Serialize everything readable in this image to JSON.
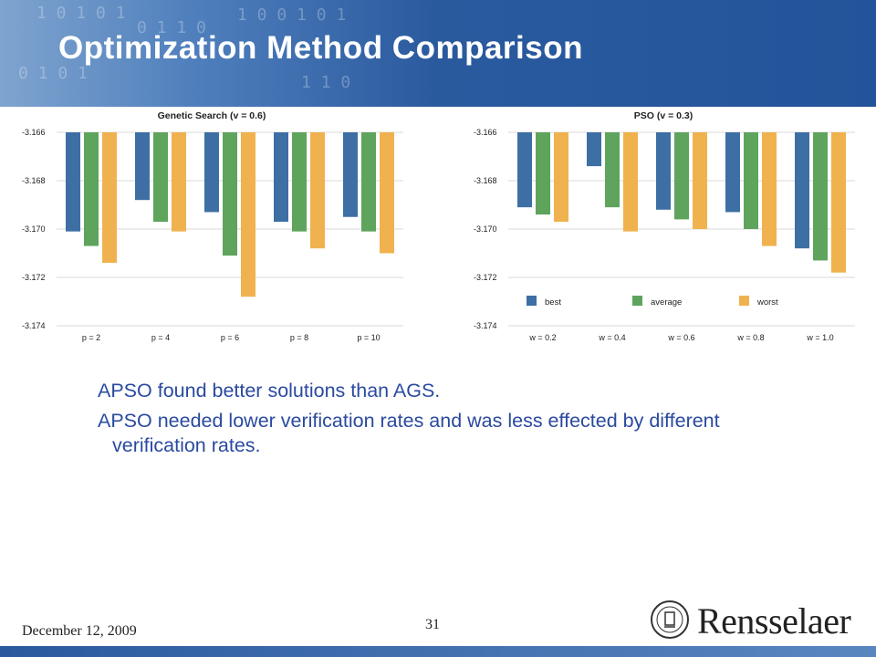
{
  "slide": {
    "title": "Optimization Method Comparison",
    "bullets": [
      "APSO found better solutions than AGS.",
      "APSO needed lower verification rates and was less effected by different verification rates."
    ],
    "footer": {
      "date": "December 12, 2009",
      "page": "31"
    },
    "logo": {
      "text": "Rensselaer"
    },
    "colors": {
      "header": "#2a5a9e",
      "bullet_text": "#2a4aa0"
    }
  },
  "chart_data": [
    {
      "type": "bar",
      "title": "Genetic Search (v = 0.6)",
      "categories": [
        "p = 2",
        "p = 4",
        "p = 6",
        "p = 8",
        "p = 10"
      ],
      "ylim": [
        -3.174,
        -3.166
      ],
      "yticks": [
        "-3.166",
        "-3.168",
        "-3.170",
        "-3.172",
        "-3.174"
      ],
      "series": [
        {
          "values": [
            -3.1701,
            -3.1688,
            -3.1693,
            -3.1697,
            -3.1695
          ],
          "color": "#3d6fa5"
        },
        {
          "values": [
            -3.1707,
            -3.1697,
            -3.1711,
            -3.1701,
            -3.1701
          ],
          "color": "#5ea45c"
        },
        {
          "values": [
            -3.1714,
            -3.1701,
            -3.1728,
            -3.1708,
            -3.171
          ],
          "color": "#f0b24e"
        }
      ],
      "grid": true,
      "legend": null
    },
    {
      "type": "bar",
      "title": "PSO (v = 0.3)",
      "categories": [
        "w = 0.2",
        "w = 0.4",
        "w = 0.6",
        "w = 0.8",
        "w = 1.0"
      ],
      "ylim": [
        -3.174,
        -3.166
      ],
      "yticks": [
        "-3.166",
        "-3.168",
        "-3.170",
        "-3.172",
        "-3.174"
      ],
      "series": [
        {
          "name": "best",
          "values": [
            -3.1691,
            -3.1674,
            -3.1692,
            -3.1693,
            -3.1708
          ],
          "color": "#3d6fa5"
        },
        {
          "name": "average",
          "values": [
            -3.1694,
            -3.1691,
            -3.1696,
            -3.17,
            -3.1713
          ],
          "color": "#5ea45c"
        },
        {
          "name": "worst",
          "values": [
            -3.1697,
            -3.1701,
            -3.17,
            -3.1707,
            -3.1718
          ],
          "color": "#f0b24e"
        }
      ],
      "grid": true,
      "legend": "bottom"
    }
  ]
}
